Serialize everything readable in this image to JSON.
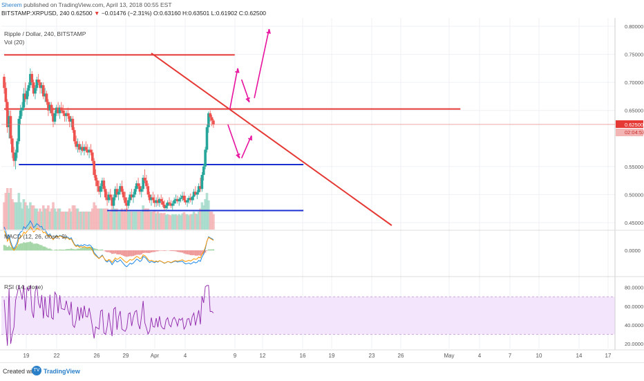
{
  "header": {
    "author": "Sherem",
    "published_text": "published on TradingView.com, April 13, 2018 00:55 EST",
    "symbol_line_prefix": "BITSTAMP:XRPUSD, 240 0.62500",
    "change_arrow": "▼",
    "change": "−0.01476 (−2.31%)",
    "ohlc": "O:0.63160 H:0.63501 L:0.61902 C:0.62500"
  },
  "legend": {
    "title": "Ripple / Dollar, 240, BITSTAMP",
    "vol": "Vol (20)",
    "macd": "MACD (12, 26, close, 9)",
    "rsi": "RSI (14, close)"
  },
  "price_axis": {
    "ticks": [
      "0.80000",
      "0.75000",
      "0.70000",
      "0.65000",
      "0.55000",
      "0.50000",
      "0.45000"
    ],
    "last_price_label": "0.62500",
    "countdown_label": "02:04:53"
  },
  "macd_axis": {
    "ticks": [
      "0.0000"
    ]
  },
  "rsi_axis": {
    "ticks": [
      "80.0000",
      "60.0000",
      "40.0000",
      "20.0000"
    ]
  },
  "time_axis": {
    "ticks": [
      "19",
      "22",
      "26",
      "29",
      "Apr",
      "4",
      "9",
      "12",
      "16",
      "19",
      "23",
      "26",
      "May",
      "4",
      "7",
      "10",
      "14",
      "17"
    ]
  },
  "footer": {
    "created_with": "Created with",
    "brand": "TradingView",
    "logo_text": "TV"
  },
  "chart_data": {
    "type": "candlestick",
    "series_name": "XRPUSD",
    "y_range": [
      0.445,
      0.8
    ],
    "price_ticks": [
      0.8,
      0.75,
      0.7,
      0.65,
      0.55,
      0.5,
      0.45
    ],
    "horizontal_lines": [
      {
        "price": 0.749,
        "color": "#e53935",
        "from_day": 0,
        "to_day": 23.5
      },
      {
        "price": 0.6525,
        "color": "#e53935",
        "from_day": 0,
        "to_day": 46.5
      },
      {
        "price": 0.5535,
        "color": "#1a2fd0",
        "from_day": 1.5,
        "to_day": 30.5
      },
      {
        "price": 0.4715,
        "color": "#1a2fd0",
        "from_day": 10.5,
        "to_day": 30.5
      }
    ],
    "trendline": {
      "color": "#e53935",
      "from_day": 15.0,
      "from_price": 0.752,
      "to_day": 39.5,
      "to_price": 0.445
    },
    "projection_arrows": [
      {
        "points": [
          [
            23.0,
            0.652
          ],
          [
            23.8,
            0.725
          ]
        ],
        "color": "#e8119e"
      },
      {
        "points": [
          [
            24.2,
            0.705
          ],
          [
            25.0,
            0.665
          ]
        ],
        "color": "#e8119e"
      },
      {
        "points": [
          [
            25.5,
            0.672
          ],
          [
            27.0,
            0.795
          ]
        ],
        "color": "#e8119e"
      },
      {
        "points": [
          [
            22.8,
            0.625
          ],
          [
            24.0,
            0.565
          ]
        ],
        "color": "#e8119e"
      },
      {
        "points": [
          [
            24.2,
            0.565
          ],
          [
            25.2,
            0.605
          ]
        ],
        "color": "#e8119e"
      }
    ],
    "candles": [
      [
        0.0,
        0.71,
        0.715,
        0.68,
        0.69
      ],
      [
        0.167,
        0.69,
        0.7,
        0.65,
        0.665
      ],
      [
        0.333,
        0.665,
        0.67,
        0.61,
        0.62
      ],
      [
        0.5,
        0.62,
        0.65,
        0.6,
        0.64
      ],
      [
        0.667,
        0.64,
        0.65,
        0.59,
        0.6
      ],
      [
        0.833,
        0.6,
        0.605,
        0.565,
        0.575
      ],
      [
        1.0,
        0.575,
        0.585,
        0.55,
        0.56
      ],
      [
        1.167,
        0.56,
        0.58,
        0.545,
        0.575
      ],
      [
        1.333,
        0.575,
        0.6,
        0.565,
        0.595
      ],
      [
        1.5,
        0.595,
        0.64,
        0.59,
        0.635
      ],
      [
        1.667,
        0.635,
        0.66,
        0.625,
        0.65
      ],
      [
        1.833,
        0.65,
        0.665,
        0.64,
        0.655
      ],
      [
        2.0,
        0.655,
        0.69,
        0.65,
        0.68
      ],
      [
        2.167,
        0.68,
        0.7,
        0.665,
        0.67
      ],
      [
        2.333,
        0.67,
        0.69,
        0.66,
        0.685
      ],
      [
        2.5,
        0.685,
        0.7,
        0.675,
        0.695
      ],
      [
        2.667,
        0.695,
        0.725,
        0.69,
        0.715
      ],
      [
        2.833,
        0.715,
        0.72,
        0.69,
        0.7
      ],
      [
        3.0,
        0.7,
        0.705,
        0.675,
        0.68
      ],
      [
        3.167,
        0.68,
        0.695,
        0.67,
        0.69
      ],
      [
        3.333,
        0.69,
        0.71,
        0.685,
        0.705
      ],
      [
        3.5,
        0.705,
        0.715,
        0.695,
        0.7
      ],
      [
        3.667,
        0.7,
        0.705,
        0.68,
        0.69
      ],
      [
        3.833,
        0.69,
        0.7,
        0.68,
        0.695
      ],
      [
        4.0,
        0.695,
        0.7,
        0.67,
        0.675
      ],
      [
        4.167,
        0.675,
        0.69,
        0.665,
        0.68
      ],
      [
        4.333,
        0.68,
        0.685,
        0.66,
        0.665
      ],
      [
        4.5,
        0.665,
        0.67,
        0.64,
        0.65
      ],
      [
        4.667,
        0.65,
        0.665,
        0.645,
        0.66
      ],
      [
        4.833,
        0.66,
        0.665,
        0.64,
        0.645
      ],
      [
        5.0,
        0.645,
        0.655,
        0.62,
        0.63
      ],
      [
        5.167,
        0.63,
        0.65,
        0.625,
        0.645
      ],
      [
        5.333,
        0.645,
        0.66,
        0.64,
        0.655
      ],
      [
        5.5,
        0.655,
        0.665,
        0.64,
        0.645
      ],
      [
        5.667,
        0.645,
        0.66,
        0.635,
        0.655
      ],
      [
        5.833,
        0.655,
        0.665,
        0.645,
        0.65
      ],
      [
        6.0,
        0.65,
        0.66,
        0.64,
        0.645
      ],
      [
        6.167,
        0.645,
        0.65,
        0.63,
        0.64
      ],
      [
        6.333,
        0.64,
        0.65,
        0.63,
        0.645
      ],
      [
        6.5,
        0.645,
        0.655,
        0.635,
        0.64
      ],
      [
        6.667,
        0.64,
        0.645,
        0.62,
        0.63
      ],
      [
        6.833,
        0.63,
        0.64,
        0.62,
        0.635
      ],
      [
        7.0,
        0.635,
        0.64,
        0.61,
        0.615
      ],
      [
        7.167,
        0.615,
        0.62,
        0.59,
        0.595
      ],
      [
        7.333,
        0.595,
        0.605,
        0.58,
        0.585
      ],
      [
        7.5,
        0.585,
        0.6,
        0.575,
        0.59
      ],
      [
        7.667,
        0.59,
        0.595,
        0.575,
        0.58
      ],
      [
        7.833,
        0.58,
        0.59,
        0.57,
        0.585
      ],
      [
        8.0,
        0.585,
        0.595,
        0.575,
        0.578
      ],
      [
        8.167,
        0.578,
        0.59,
        0.57,
        0.585
      ],
      [
        8.333,
        0.585,
        0.595,
        0.575,
        0.58
      ],
      [
        8.5,
        0.58,
        0.59,
        0.57,
        0.575
      ],
      [
        8.667,
        0.575,
        0.585,
        0.565,
        0.58
      ],
      [
        8.833,
        0.58,
        0.59,
        0.57,
        0.575
      ],
      [
        9.0,
        0.575,
        0.58,
        0.555,
        0.56
      ],
      [
        9.167,
        0.56,
        0.565,
        0.53,
        0.535
      ],
      [
        9.333,
        0.535,
        0.545,
        0.515,
        0.525
      ],
      [
        9.5,
        0.525,
        0.53,
        0.505,
        0.515
      ],
      [
        9.667,
        0.515,
        0.525,
        0.5,
        0.505
      ],
      [
        9.833,
        0.505,
        0.52,
        0.495,
        0.515
      ],
      [
        10.0,
        0.515,
        0.53,
        0.505,
        0.525
      ],
      [
        10.167,
        0.525,
        0.53,
        0.505,
        0.51
      ],
      [
        10.333,
        0.51,
        0.515,
        0.49,
        0.495
      ],
      [
        10.5,
        0.495,
        0.505,
        0.48,
        0.49
      ],
      [
        10.667,
        0.49,
        0.505,
        0.485,
        0.5
      ],
      [
        10.833,
        0.5,
        0.51,
        0.49,
        0.495
      ],
      [
        11.0,
        0.495,
        0.5,
        0.475,
        0.48
      ],
      [
        11.167,
        0.48,
        0.5,
        0.475,
        0.495
      ],
      [
        11.333,
        0.495,
        0.515,
        0.49,
        0.51
      ],
      [
        11.5,
        0.51,
        0.52,
        0.495,
        0.5
      ],
      [
        11.667,
        0.5,
        0.51,
        0.49,
        0.505
      ],
      [
        11.833,
        0.505,
        0.52,
        0.5,
        0.515
      ],
      [
        12.0,
        0.515,
        0.525,
        0.5,
        0.505
      ],
      [
        12.167,
        0.505,
        0.51,
        0.49,
        0.495
      ],
      [
        12.333,
        0.495,
        0.505,
        0.48,
        0.485
      ],
      [
        12.5,
        0.485,
        0.495,
        0.47,
        0.48
      ],
      [
        12.667,
        0.48,
        0.495,
        0.475,
        0.49
      ],
      [
        12.833,
        0.49,
        0.505,
        0.485,
        0.5
      ],
      [
        13.0,
        0.5,
        0.51,
        0.49,
        0.495
      ],
      [
        13.167,
        0.495,
        0.505,
        0.485,
        0.5
      ],
      [
        13.333,
        0.5,
        0.515,
        0.495,
        0.51
      ],
      [
        13.5,
        0.51,
        0.525,
        0.505,
        0.52
      ],
      [
        13.667,
        0.52,
        0.53,
        0.51,
        0.515
      ],
      [
        13.833,
        0.515,
        0.52,
        0.5,
        0.505
      ],
      [
        14.0,
        0.505,
        0.515,
        0.495,
        0.51
      ],
      [
        14.167,
        0.51,
        0.535,
        0.505,
        0.53
      ],
      [
        14.333,
        0.53,
        0.545,
        0.52,
        0.525
      ],
      [
        14.5,
        0.525,
        0.535,
        0.51,
        0.515
      ],
      [
        14.667,
        0.515,
        0.52,
        0.495,
        0.5
      ],
      [
        14.833,
        0.5,
        0.505,
        0.485,
        0.49
      ],
      [
        15.0,
        0.49,
        0.5,
        0.48,
        0.495
      ],
      [
        15.167,
        0.495,
        0.505,
        0.485,
        0.49
      ],
      [
        15.333,
        0.49,
        0.5,
        0.478,
        0.485
      ],
      [
        15.5,
        0.485,
        0.495,
        0.478,
        0.49
      ],
      [
        15.667,
        0.49,
        0.5,
        0.48,
        0.485
      ],
      [
        15.833,
        0.485,
        0.495,
        0.478,
        0.492
      ],
      [
        16.0,
        0.492,
        0.5,
        0.482,
        0.488
      ],
      [
        16.167,
        0.488,
        0.495,
        0.478,
        0.482
      ],
      [
        16.333,
        0.482,
        0.49,
        0.472,
        0.476
      ],
      [
        16.5,
        0.476,
        0.485,
        0.47,
        0.48
      ],
      [
        16.667,
        0.48,
        0.49,
        0.474,
        0.486
      ],
      [
        16.833,
        0.486,
        0.495,
        0.48,
        0.484
      ],
      [
        17.0,
        0.484,
        0.49,
        0.476,
        0.48
      ],
      [
        17.167,
        0.48,
        0.488,
        0.472,
        0.484
      ],
      [
        17.333,
        0.484,
        0.495,
        0.48,
        0.49
      ],
      [
        17.5,
        0.49,
        0.5,
        0.484,
        0.492
      ],
      [
        17.667,
        0.492,
        0.498,
        0.484,
        0.488
      ],
      [
        17.833,
        0.488,
        0.496,
        0.48,
        0.492
      ],
      [
        18.0,
        0.492,
        0.5,
        0.486,
        0.494
      ],
      [
        18.167,
        0.494,
        0.505,
        0.488,
        0.498
      ],
      [
        18.333,
        0.498,
        0.505,
        0.486,
        0.49
      ],
      [
        18.5,
        0.49,
        0.498,
        0.482,
        0.486
      ],
      [
        18.667,
        0.486,
        0.494,
        0.478,
        0.49
      ],
      [
        18.833,
        0.49,
        0.498,
        0.484,
        0.494
      ],
      [
        19.0,
        0.494,
        0.502,
        0.486,
        0.49
      ],
      [
        19.167,
        0.49,
        0.498,
        0.482,
        0.496
      ],
      [
        19.333,
        0.496,
        0.51,
        0.49,
        0.505
      ],
      [
        19.5,
        0.505,
        0.515,
        0.498,
        0.5
      ],
      [
        19.667,
        0.5,
        0.508,
        0.492,
        0.504
      ],
      [
        19.833,
        0.504,
        0.52,
        0.5,
        0.515
      ],
      [
        20.0,
        0.515,
        0.53,
        0.505,
        0.51
      ],
      [
        20.167,
        0.51,
        0.54,
        0.505,
        0.535
      ],
      [
        20.333,
        0.535,
        0.555,
        0.525,
        0.55
      ],
      [
        20.5,
        0.55,
        0.585,
        0.545,
        0.58
      ],
      [
        20.667,
        0.58,
        0.625,
        0.575,
        0.62
      ],
      [
        20.833,
        0.62,
        0.648,
        0.61,
        0.645
      ],
      [
        21.0,
        0.645,
        0.65,
        0.63,
        0.638
      ],
      [
        21.167,
        0.638,
        0.642,
        0.622,
        0.632
      ],
      [
        21.333,
        0.632,
        0.635,
        0.619,
        0.625
      ]
    ],
    "candle_date_ticks": {
      "19": 1.0,
      "22": 4.0,
      "26": 8.0,
      "29": 11.0,
      "Apr": 14.0,
      "4": 17.0,
      "9": 22.0,
      "12": 25.0
    }
  }
}
